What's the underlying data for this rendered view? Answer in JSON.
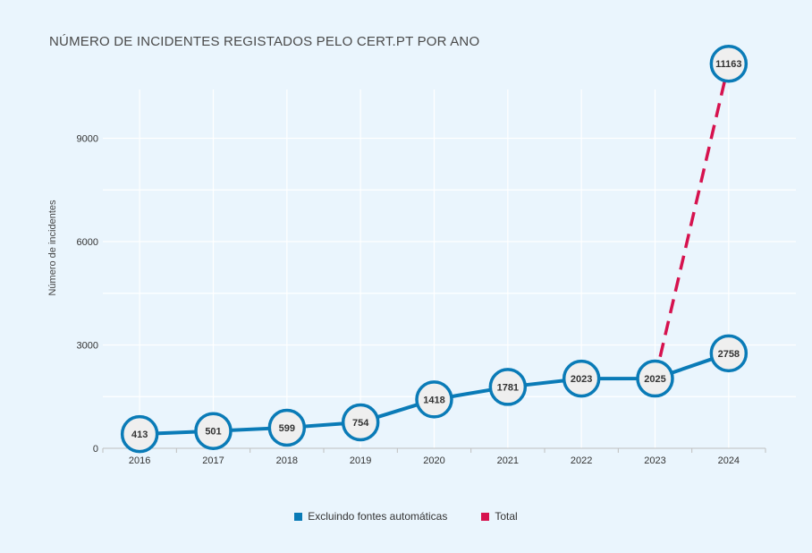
{
  "title": "NÚMERO DE INCIDENTES REGISTADOS PELO CERT.PT POR ANO",
  "colors": {
    "background": "#eaf5fd",
    "excluding": "#0a7bb7",
    "total": "#d6124e",
    "grid": "#ffffff",
    "axis": "#bfbfbf"
  },
  "chart_data": {
    "type": "line",
    "title": "NÚMERO DE INCIDENTES REGISTADOS PELO CERT.PT POR ANO",
    "xlabel": "",
    "ylabel": "Número de incidentes",
    "categories": [
      "2016",
      "2017",
      "2018",
      "2019",
      "2020",
      "2021",
      "2022",
      "2023",
      "2024"
    ],
    "yticks": [
      0,
      3000,
      6000,
      9000
    ],
    "ylim": [
      0,
      10400
    ],
    "grid": true,
    "legend_position": "bottom",
    "series": [
      {
        "name": "Excluindo fontes automáticas",
        "style": "solid",
        "color": "#0a7bb7",
        "values": [
          413,
          501,
          599,
          754,
          1418,
          1781,
          2023,
          2025,
          2758
        ],
        "labels": [
          "413",
          "501",
          "599",
          "754",
          "1418",
          "1781",
          "2023",
          "2025",
          "2758"
        ]
      },
      {
        "name": "Total",
        "style": "dashed",
        "color": "#d6124e",
        "x": [
          "2023",
          "2024"
        ],
        "values": [
          2025,
          11163
        ],
        "labels": [
          "11163"
        ]
      }
    ]
  }
}
